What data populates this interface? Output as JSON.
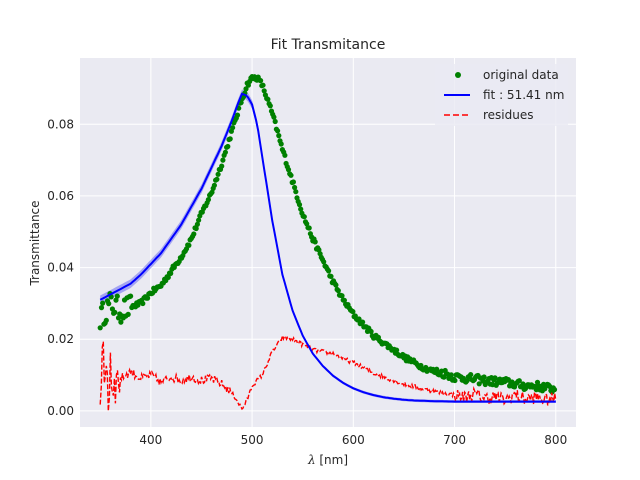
{
  "chart_data": {
    "type": "line",
    "title": "Fit Transmitance",
    "xlabel_symbol": "λ",
    "xlabel_unit": "[nm]",
    "ylabel": "Transmittance",
    "xlim": [
      330,
      820
    ],
    "ylim": [
      -0.0045,
      0.0985
    ],
    "x_ticks": [
      400,
      500,
      600,
      700,
      800
    ],
    "x_tick_labels": [
      "400",
      "500",
      "600",
      "700",
      "800"
    ],
    "y_ticks": [
      0.0,
      0.02,
      0.04,
      0.06,
      0.08
    ],
    "y_tick_labels": [
      "0.00",
      "0.02",
      "0.04",
      "0.06",
      "0.08"
    ],
    "grid": true,
    "legend_position": "top-right",
    "colors": {
      "background": "#eaeaf2",
      "grid": "#ffffff",
      "original": "#008000",
      "fit": "#0000ff",
      "fit_band": "#6a6af0",
      "residues": "#ff0000"
    },
    "series": [
      {
        "name": "original data",
        "style": "points",
        "x": [
          350,
          360,
          370,
          380,
          390,
          400,
          410,
          420,
          430,
          440,
          450,
          460,
          470,
          480,
          490,
          495,
          500,
          505,
          510,
          520,
          530,
          540,
          550,
          560,
          570,
          580,
          590,
          600,
          610,
          620,
          630,
          640,
          650,
          660,
          670,
          680,
          690,
          700,
          710,
          720,
          730,
          740,
          750,
          760,
          770,
          780,
          790,
          800
        ],
        "y": [
          0.026,
          0.03,
          0.028,
          0.029,
          0.03,
          0.033,
          0.035,
          0.039,
          0.043,
          0.048,
          0.055,
          0.061,
          0.069,
          0.078,
          0.087,
          0.091,
          0.093,
          0.093,
          0.091,
          0.083,
          0.073,
          0.064,
          0.055,
          0.048,
          0.042,
          0.036,
          0.031,
          0.027,
          0.024,
          0.021,
          0.019,
          0.017,
          0.015,
          0.0135,
          0.012,
          0.011,
          0.0105,
          0.0095,
          0.0092,
          0.0088,
          0.0085,
          0.0082,
          0.008,
          0.0075,
          0.007,
          0.007,
          0.0065,
          0.006
        ]
      },
      {
        "name": "fit : 51.41 nm",
        "style": "line",
        "x": [
          350,
          360,
          370,
          380,
          390,
          400,
          410,
          420,
          430,
          440,
          450,
          460,
          470,
          480,
          485,
          490,
          495,
          500,
          505,
          510,
          520,
          530,
          540,
          550,
          560,
          570,
          580,
          590,
          600,
          610,
          620,
          630,
          640,
          650,
          660,
          680,
          700,
          720,
          740,
          760,
          780,
          800
        ],
        "y": [
          0.031,
          0.0325,
          0.034,
          0.0355,
          0.038,
          0.041,
          0.044,
          0.048,
          0.052,
          0.057,
          0.062,
          0.068,
          0.074,
          0.081,
          0.085,
          0.0885,
          0.088,
          0.0855,
          0.08,
          0.071,
          0.053,
          0.038,
          0.028,
          0.021,
          0.016,
          0.0125,
          0.0098,
          0.0078,
          0.0063,
          0.0052,
          0.0044,
          0.0038,
          0.0034,
          0.0031,
          0.0029,
          0.0027,
          0.0026,
          0.0026,
          0.0026,
          0.0026,
          0.0026,
          0.0026
        ]
      },
      {
        "name": "residues",
        "style": "dashed",
        "x": [
          350,
          352,
          354,
          356,
          358,
          360,
          362,
          364,
          366,
          368,
          370,
          375,
          380,
          390,
          400,
          410,
          420,
          430,
          440,
          450,
          460,
          470,
          480,
          485,
          490,
          495,
          500,
          510,
          520,
          530,
          540,
          550,
          560,
          570,
          580,
          590,
          600,
          610,
          620,
          630,
          640,
          650,
          660,
          670,
          680,
          690,
          700,
          710,
          720,
          730,
          740,
          750,
          760,
          770,
          780,
          790,
          800
        ],
        "y": [
          0.005,
          0.021,
          0.002,
          0.018,
          0.001,
          0.016,
          0.004,
          0.013,
          0.006,
          0.011,
          0.009,
          0.01,
          0.011,
          0.009,
          0.01,
          0.008,
          0.0095,
          0.0085,
          0.0095,
          0.0085,
          0.009,
          0.0075,
          0.005,
          0.003,
          0.0005,
          0.003,
          0.007,
          0.01,
          0.0165,
          0.0205,
          0.02,
          0.0185,
          0.017,
          0.0165,
          0.016,
          0.0145,
          0.0135,
          0.012,
          0.0105,
          0.0095,
          0.0085,
          0.0075,
          0.0068,
          0.006,
          0.0055,
          0.0048,
          0.0045,
          0.0038,
          0.0048,
          0.0035,
          0.004,
          0.003,
          0.0045,
          0.0032,
          0.0038,
          0.003,
          0.0035
        ]
      }
    ]
  }
}
